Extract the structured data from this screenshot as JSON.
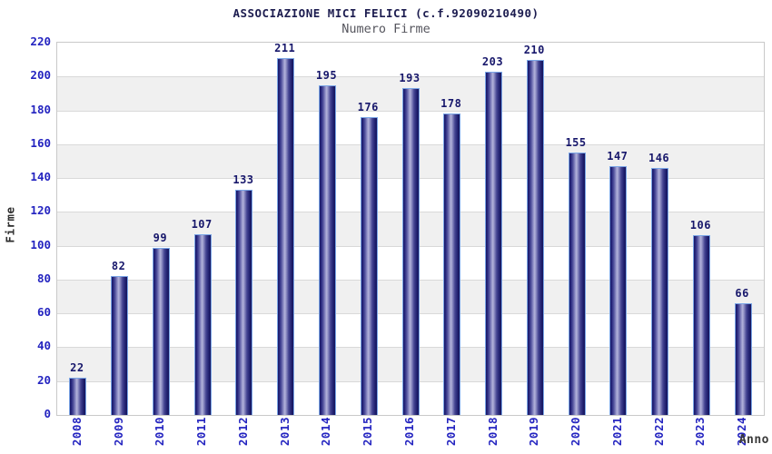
{
  "header": {
    "title": "ASSOCIAZIONE MICI FELICI (c.f.92090210490)",
    "subtitle": "Numero Firme"
  },
  "chart_data": {
    "type": "bar",
    "title": "ASSOCIAZIONE MICI FELICI (c.f.92090210490)",
    "subtitle": "Numero Firme",
    "categories": [
      "2008",
      "2009",
      "2010",
      "2011",
      "2012",
      "2013",
      "2014",
      "2015",
      "2016",
      "2017",
      "2018",
      "2019",
      "2020",
      "2021",
      "2022",
      "2023",
      "2024"
    ],
    "values": [
      22,
      82,
      99,
      107,
      133,
      211,
      195,
      176,
      193,
      178,
      203,
      210,
      155,
      147,
      146,
      106,
      66
    ],
    "xlabel": "Anno",
    "ylabel": "Firme",
    "ylim": [
      0,
      220
    ],
    "ytick_step": 20,
    "grid": "horizontal",
    "legend": "none",
    "style": {
      "band_white": "#ffffff",
      "band_gray": "#f0f0f0",
      "grid_color": "#d9d9d9",
      "plot_border": "#c9c9c9",
      "tick_label_color": "#2424c0",
      "value_label_color": "#17176b",
      "title_color": "#1c1c4f",
      "subtitle_color": "#56565e",
      "bar_border": "#7aa5e6",
      "bar_dark": "#191965",
      "bar_highlight": "#b3b3da"
    }
  }
}
